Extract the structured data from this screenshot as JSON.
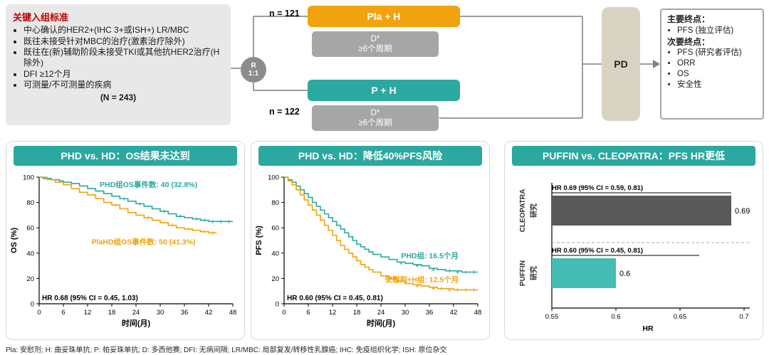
{
  "colors": {
    "accent_orange": "#F2A20D",
    "accent_teal": "#2BA8A0",
    "bar_teal": "#45BCB3",
    "grey": "#A6A6A6",
    "dark_grey": "#595959",
    "beige": "#D8D2C3",
    "panel_grey": "#E9E8E8",
    "rand_grey": "#8C8C8C",
    "title_red": "#C00000"
  },
  "schema": {
    "criteria": {
      "title": "关键入组标准",
      "items": [
        "中心确认的HER2+(IHC 3+或ISH+) LR/MBC",
        "既往未接受针对MBC的治疗(激素治疗除外)",
        "既往在(新)辅助阶段未接受TKI或其他抗HER2治疗(H除外)",
        "DFI ≥12个月",
        "可测量/不可测量的疾病"
      ],
      "n_total": "(N = 243)"
    },
    "randomization": {
      "label": "R",
      "ratio": "1:1"
    },
    "arms": [
      {
        "n": "n = 121",
        "label": "Pla + H",
        "d": "D*",
        "cycles": "≥6个周期"
      },
      {
        "n": "n = 122",
        "label": "P + H",
        "d": "D*",
        "cycles": "≥6个周期"
      }
    ],
    "pd": "PD",
    "endpoints": {
      "primary_title": "主要终点：",
      "primary_items": [
        "PFS (独立评估)"
      ],
      "secondary_title": "次要终点：",
      "secondary_items": [
        "PFS (研究者评估)",
        "ORR",
        "OS",
        "安全性"
      ]
    }
  },
  "chart_data": [
    {
      "type": "line",
      "subtype": "kaplan-meier",
      "title": "PHD vs. HD：OS结果未达到",
      "xlabel": "时间(月)",
      "ylabel": "OS (%)",
      "xlim": [
        0,
        48
      ],
      "ylim": [
        0,
        100
      ],
      "xticks": [
        0,
        6,
        12,
        18,
        24,
        30,
        36,
        42,
        48
      ],
      "yticks": [
        0,
        20,
        40,
        60,
        80,
        100
      ],
      "annotation": "HR 0.68 (95% CI = 0.45, 1.03)",
      "series": [
        {
          "name": "PHD组OS事件数: 40 (32.8%)",
          "color": "#2BA8A0",
          "label_pos": [
            15,
            92
          ],
          "x": [
            0,
            1,
            3,
            5,
            6,
            8,
            10,
            12,
            14,
            16,
            18,
            20,
            22,
            24,
            26,
            28,
            30,
            32,
            34,
            36,
            38,
            40,
            42,
            48
          ],
          "y": [
            100,
            99,
            98,
            97,
            96,
            95,
            93,
            91,
            89,
            87,
            85,
            83,
            81,
            79,
            77,
            75,
            73,
            71,
            69,
            68,
            67,
            66,
            65,
            65
          ],
          "censors": [
            [
              21,
              83
            ],
            [
              25,
              79
            ],
            [
              31,
              73
            ],
            [
              35,
              69
            ],
            [
              39,
              67
            ],
            [
              41,
              66
            ],
            [
              43,
              65
            ],
            [
              45,
              65
            ],
            [
              47,
              65
            ]
          ]
        },
        {
          "name": "PlaHD组OS事件数: 50 (41.3%)",
          "color": "#F2A20D",
          "label_pos": [
            13,
            47
          ],
          "x": [
            0,
            2,
            4,
            6,
            8,
            10,
            12,
            14,
            16,
            18,
            20,
            22,
            24,
            26,
            28,
            30,
            32,
            34,
            36,
            38,
            40,
            42,
            44
          ],
          "y": [
            100,
            98,
            96,
            94,
            91,
            88,
            86,
            83,
            80,
            78,
            75,
            72,
            70,
            68,
            66,
            64,
            62,
            60,
            59,
            58,
            57,
            56,
            56
          ],
          "censors": [
            [
              19,
              78
            ],
            [
              27,
              68
            ],
            [
              33,
              62
            ],
            [
              37,
              59
            ],
            [
              41,
              57
            ],
            [
              43,
              56
            ]
          ]
        }
      ]
    },
    {
      "type": "line",
      "subtype": "kaplan-meier",
      "title": "PHD vs. HD：降低40%PFS风险",
      "xlabel": "时间(月)",
      "ylabel": "PFS (%)",
      "xlim": [
        0,
        48
      ],
      "ylim": [
        0,
        100
      ],
      "xticks": [
        0,
        6,
        12,
        18,
        24,
        30,
        36,
        42,
        48
      ],
      "yticks": [
        0,
        20,
        40,
        60,
        80,
        100
      ],
      "annotation": "HR 0.60 (95% CI = 0.45, 0.81)",
      "series": [
        {
          "name": "PHD组: 16.5个月",
          "color": "#2BA8A0",
          "label_pos": [
            29,
            36
          ],
          "x": [
            0,
            1,
            2,
            3,
            4,
            5,
            6,
            7,
            8,
            9,
            10,
            11,
            12,
            13,
            14,
            15,
            16,
            17,
            18,
            19,
            20,
            21,
            22,
            24,
            26,
            28,
            30,
            32,
            34,
            36,
            38,
            40,
            42,
            44,
            46,
            48
          ],
          "y": [
            100,
            98,
            96,
            93,
            90,
            87,
            84,
            80,
            77,
            74,
            71,
            68,
            65,
            62,
            59,
            56,
            53,
            50,
            47,
            45,
            43,
            41,
            39,
            37,
            35,
            33,
            32,
            31,
            30,
            28,
            27,
            26,
            26,
            25,
            25,
            25
          ],
          "censors": [
            [
              29,
              32
            ],
            [
              33,
              30
            ],
            [
              37,
              27
            ],
            [
              41,
              26
            ],
            [
              43,
              25
            ],
            [
              45,
              25
            ],
            [
              47,
              25
            ]
          ]
        },
        {
          "name": "安慰剂+H组: 12.5个月",
          "color": "#F2A20D",
          "label_pos": [
            25,
            17
          ],
          "x": [
            0,
            1,
            2,
            3,
            4,
            5,
            6,
            7,
            8,
            9,
            10,
            11,
            12,
            13,
            14,
            15,
            16,
            17,
            18,
            19,
            20,
            21,
            22,
            24,
            26,
            28,
            30,
            32,
            34,
            36,
            38,
            40,
            42,
            44,
            46,
            48
          ],
          "y": [
            100,
            97,
            94,
            90,
            86,
            82,
            78,
            74,
            70,
            66,
            62,
            58,
            54,
            50,
            46,
            43,
            40,
            37,
            34,
            31,
            29,
            27,
            25,
            22,
            20,
            18,
            16,
            15,
            14,
            13,
            12,
            12,
            11,
            11,
            11,
            11
          ],
          "censors": [
            [
              33,
              14
            ],
            [
              37,
              12
            ],
            [
              39,
              12
            ],
            [
              41,
              11
            ],
            [
              43,
              11
            ],
            [
              45,
              11
            ],
            [
              47,
              11
            ]
          ]
        }
      ]
    },
    {
      "type": "bar",
      "orientation": "horizontal",
      "title": "PUFFIN vs. CLEOPATRA：PFS HR更低",
      "xlabel": "HR",
      "xlim": [
        0.55,
        0.7
      ],
      "xticks": [
        0.55,
        0.6,
        0.65,
        0.7
      ],
      "xtick_labels": [
        "0.55",
        "0.6",
        "0.65",
        "0.7"
      ],
      "bars": [
        {
          "category_line1": "CLEOPATRA",
          "category_line2": "研究",
          "value": 0.69,
          "value_label": "0.69",
          "annotation": "HR 0.69 (95% CI = 0.59, 0.81)",
          "color": "#595959"
        },
        {
          "category_line1": "PUFFIN",
          "category_line2": "研究",
          "value": 0.6,
          "value_label": "0.6",
          "annotation": "HR 0.60 (95% CI = 0.45, 0.81)",
          "color": "#45BCB3"
        }
      ]
    }
  ],
  "footnote": {
    "text": "Pla: 安慰剂; H: 曲妥珠单抗; P: 帕妥珠单抗; D: 多西他赛; DFI: 无病间隔; LR/MBC: 局部复发/转移性乳腺癌; IHC: 免疫组织化学; ISH: 原位杂交"
  }
}
